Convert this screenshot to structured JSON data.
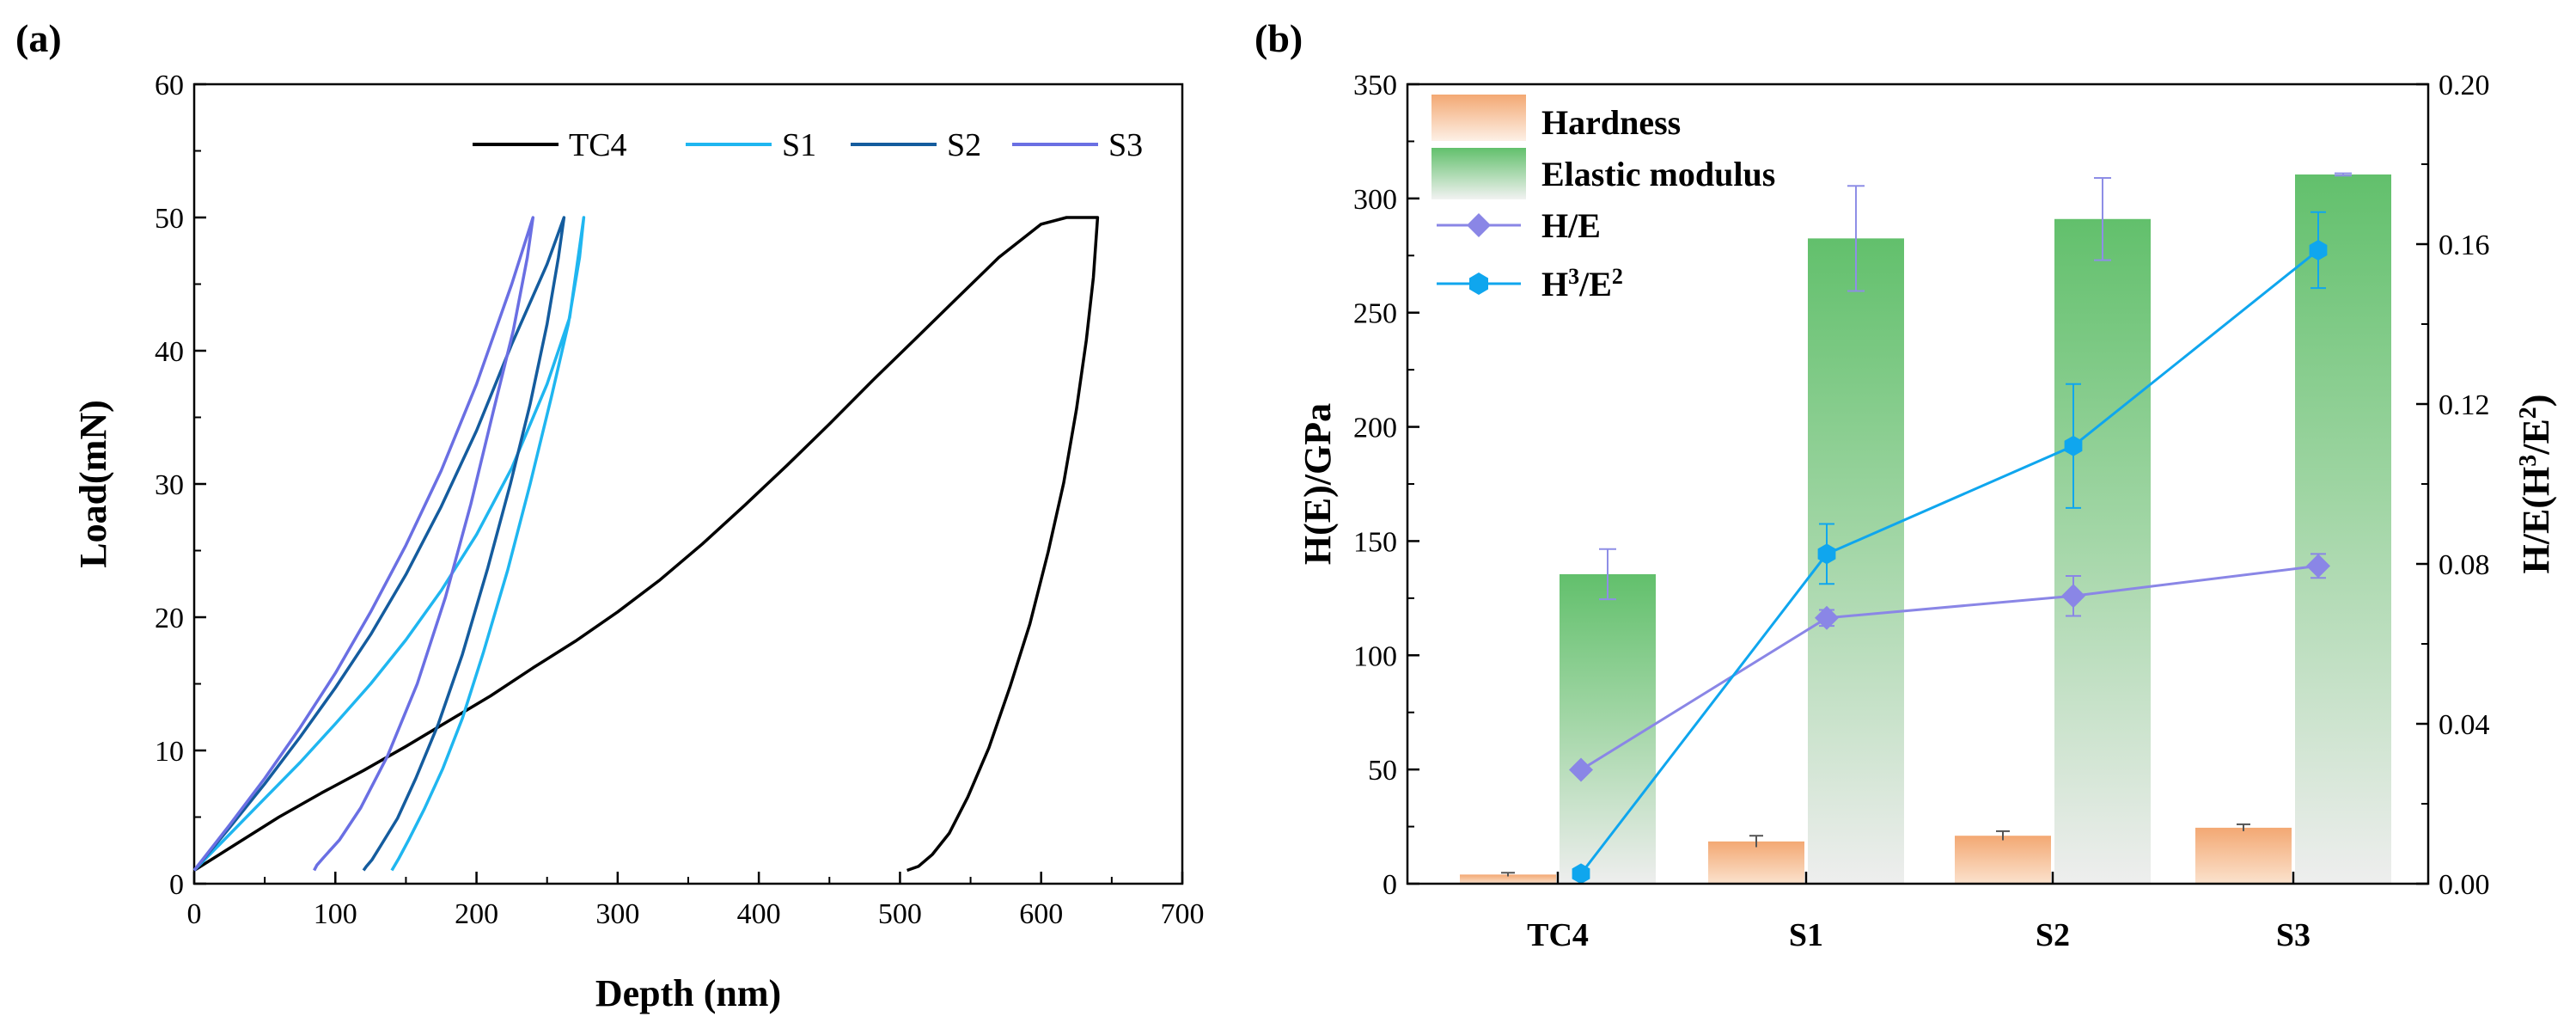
{
  "panels": {
    "a": {
      "label": "(a)",
      "chart_data": {
        "type": "line",
        "xlabel": "Depth (nm)",
        "ylabel": "Load(mN)",
        "xlim": [
          0,
          700
        ],
        "ylim": [
          0,
          60
        ],
        "xticks": [
          "0",
          "100",
          "200",
          "300",
          "400",
          "500",
          "600",
          "700"
        ],
        "yticks": [
          "0",
          "10",
          "20",
          "30",
          "40",
          "50",
          "60"
        ],
        "legend_position": "top-right",
        "series": [
          {
            "name": "TC4",
            "color": "#000000",
            "x": [
              0,
              30,
              60,
              90,
              120,
              150,
              180,
              210,
              240,
              270,
              300,
              330,
              360,
              390,
              420,
              450,
              480,
              510,
              540,
              570,
              600,
              618,
              640,
              637,
              632,
              625,
              616,
              605,
              592,
              578,
              563,
              548,
              535,
              523,
              513,
              505
            ],
            "y": [
              1,
              3,
              5,
              6.8,
              8.5,
              10.3,
              12.2,
              14.1,
              16.2,
              18.2,
              20.4,
              22.8,
              25.5,
              28.4,
              31.4,
              34.5,
              37.7,
              40.8,
              43.9,
              47,
              49.5,
              50,
              50,
              45.5,
              40.8,
              35.6,
              30.1,
              24.9,
              19.5,
              14.8,
              10.2,
              6.5,
              3.8,
              2.2,
              1.3,
              1
            ]
          },
          {
            "name": "S1",
            "color": "#1fb6f0",
            "x": [
              0,
              25,
              50,
              75,
              100,
              125,
              150,
              175,
              200,
              225,
              250,
              266,
              276,
              273,
              265,
              253,
              238,
              222,
              205,
              190,
              176,
              163,
              152,
              145,
              140
            ],
            "y": [
              1,
              3.7,
              6.4,
              9.1,
              12,
              15,
              18.3,
              22,
              26.2,
              31.2,
              37.5,
              42.5,
              50,
              47,
              42,
              36.5,
              30,
              23.5,
              17.4,
              12.4,
              8.6,
              5.6,
              3.3,
              1.9,
              1
            ]
          },
          {
            "name": "S2",
            "color": "#145c9e",
            "x": [
              0,
              25,
              50,
              75,
              100,
              125,
              150,
              175,
              200,
              225,
              250,
              262,
              258,
              250,
              238,
              224,
              208,
              190,
              173,
              157,
              144,
              133,
              126,
              122,
              120
            ],
            "y": [
              1,
              4.2,
              7.5,
              11,
              14.7,
              18.7,
              23.2,
              28.3,
              34,
              40.5,
              46.5,
              50,
              47,
              42,
              36,
              30,
              23.7,
              17.2,
              12,
              7.9,
              4.9,
              3,
              1.8,
              1.3,
              1
            ]
          },
          {
            "name": "S3",
            "color": "#6a6fe3",
            "x": [
              0,
              25,
              50,
              75,
              100,
              125,
              150,
              175,
              200,
              225,
              240,
              236,
              226,
              212,
              196,
              178,
              158,
              137,
              118,
              103,
              92,
              87,
              85
            ],
            "y": [
              1,
              4.4,
              7.9,
              11.7,
              15.8,
              20.4,
              25.4,
              31,
              37.5,
              45,
              50,
              47,
              41.5,
              35.5,
              28.5,
              21.5,
              15,
              9.6,
              5.7,
              3.3,
              2,
              1.4,
              1
            ]
          }
        ]
      }
    },
    "b": {
      "label": "(b)",
      "chart_data": {
        "type": "bar",
        "categories": [
          "TC4",
          "S1",
          "S2",
          "S3"
        ],
        "ylabel": "H(E)/GPa",
        "ylabel_right": "H/E(H³/E²)",
        "ylim": [
          0,
          350
        ],
        "ylim_right": [
          0,
          0.2
        ],
        "yticks": [
          "0",
          "50",
          "100",
          "150",
          "200",
          "250",
          "300",
          "350"
        ],
        "yticks_right": [
          "0.00",
          "0.04",
          "0.08",
          "0.12",
          "0.16",
          "0.20"
        ],
        "legend_position": "top-left",
        "series": [
          {
            "name": "Hardness",
            "kind": "bar",
            "axis": "left",
            "color": "#f5b07a",
            "values": [
              4,
              18.5,
              21,
              24.5
            ],
            "errors": [
              0.8,
              2.5,
              2,
              1.5
            ]
          },
          {
            "name": "Elastic modulus",
            "kind": "bar",
            "axis": "left",
            "color": "#5fbf6a",
            "values": [
              135.5,
              282.5,
              291,
              310.5
            ],
            "errors": [
              11,
              23,
              18,
              0.5
            ]
          },
          {
            "name": "H/E",
            "kind": "line",
            "axis": "right",
            "marker": "diamond",
            "color": "#8a86e6",
            "values": [
              0.0285,
              0.0665,
              0.072,
              0.0795
            ],
            "errors": [
              0,
              0.002,
              0.005,
              0.003
            ]
          },
          {
            "name": "H3/E2",
            "kind": "line",
            "axis": "right",
            "marker": "hexagon",
            "color": "#0fa6ee",
            "values": [
              0.0025,
              0.0825,
              0.1095,
              0.1585
            ],
            "errors": [
              0,
              0.0075,
              0.0155,
              0.0095
            ]
          }
        ],
        "legend": {
          "hardness": "Hardness",
          "modulus": "Elastic modulus",
          "he": "H/E",
          "h3e2_main": "H",
          "h3e2_sup1": "3",
          "h3e2_mid": "/E",
          "h3e2_sup2": "2"
        },
        "right_title_parts": {
          "pre": "H/E(H",
          "sup1": "3",
          "mid": "/E",
          "sup2": "2",
          "post": ")"
        }
      }
    }
  }
}
